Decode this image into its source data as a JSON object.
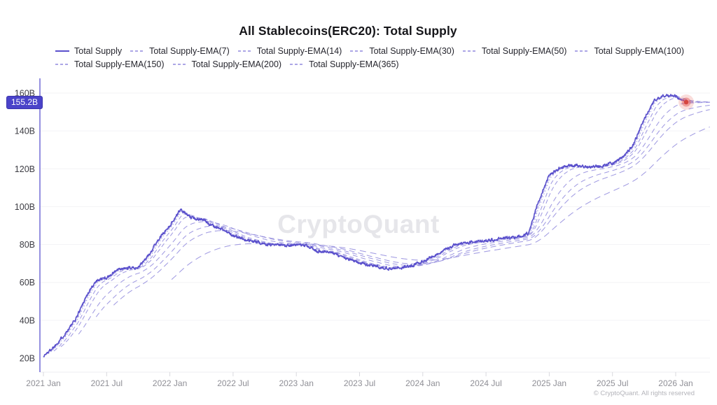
{
  "title": "All Stablecoins(ERC20): Total Supply",
  "watermark": "CryptoQuant",
  "copyright": "© CryptoQuant. All rights reserved",
  "last_value_badge": "155.2B",
  "colors": {
    "main_line": "#5a50cc",
    "ema_line": "#9089dd",
    "axis_line": "#7b74d8",
    "grid_line": "#f3f3f6",
    "baseline": "#ececf0",
    "tick_mark": "#d9d9de",
    "y_label": "#3c3c43",
    "x_label": "#8f8f96",
    "badge_bg": "#4a43c9",
    "marker_red": "#d6453f",
    "watermark": "#e6e6ea"
  },
  "legend": {
    "items": [
      {
        "label": "Total Supply",
        "dash": "solid",
        "row": 0
      },
      {
        "label": "Total Supply-EMA(7)",
        "dash": "5 3",
        "row": 0
      },
      {
        "label": "Total Supply-EMA(14)",
        "dash": "1.5 2.8",
        "row": 0
      },
      {
        "label": "Total Supply-EMA(30)",
        "dash": "6 4",
        "row": 0
      },
      {
        "label": "Total Supply-EMA(50)",
        "dash": "6 4",
        "row": 0
      },
      {
        "label": "Total Supply-EMA(100)",
        "dash": "7 5",
        "row": 0
      },
      {
        "label": "Total Supply-EMA(150)",
        "dash": "7 5",
        "row": 1
      },
      {
        "label": "Total Supply-EMA(200)",
        "dash": "8 5",
        "row": 1
      },
      {
        "label": "Total Supply-EMA(365)",
        "dash": "9 6",
        "row": 1
      }
    ]
  },
  "chart_data": {
    "type": "line",
    "title": "All Stablecoins(ERC20): Total Supply",
    "legend_position": "top",
    "grid": "horizontal",
    "y_unit": "B (billions USD)",
    "ylim": [
      13,
      167
    ],
    "x": [
      "2021-01",
      "2021-02",
      "2021-03",
      "2021-04",
      "2021-05",
      "2021-06",
      "2021-07",
      "2021-08",
      "2021-09",
      "2021-10",
      "2021-11",
      "2021-12",
      "2022-01",
      "2022-02",
      "2022-03",
      "2022-04",
      "2022-05",
      "2022-06",
      "2022-07",
      "2022-08",
      "2022-09",
      "2022-10",
      "2022-11",
      "2022-12",
      "2023-01",
      "2023-02",
      "2023-03",
      "2023-04",
      "2023-05",
      "2023-06",
      "2023-07",
      "2023-08",
      "2023-09",
      "2023-10",
      "2023-11",
      "2023-12",
      "2024-01",
      "2024-02",
      "2024-03",
      "2024-04",
      "2024-05",
      "2024-06",
      "2024-07",
      "2024-08",
      "2024-09",
      "2024-10",
      "2024-11",
      "2024-12",
      "2025-01",
      "2025-02",
      "2025-03",
      "2025-04",
      "2025-05",
      "2025-06",
      "2025-07",
      "2025-08",
      "2025-09",
      "2025-10",
      "2025-11",
      "2025-12",
      "2026-01",
      "2026-01-mid"
    ],
    "series": [
      {
        "name": "Total Supply",
        "values": [
          21,
          26,
          32.5,
          40,
          52,
          61,
          62.5,
          66.5,
          67.5,
          68,
          74.5,
          83.5,
          90,
          98.5,
          94,
          93.5,
          90,
          88,
          84.5,
          83,
          81.5,
          80.5,
          79.5,
          79.5,
          80,
          79,
          76.5,
          76,
          74.5,
          72,
          70.5,
          69,
          68,
          67.5,
          67.8,
          69,
          71,
          74,
          76.5,
          80,
          80.5,
          81.5,
          82,
          83,
          83.5,
          84,
          86,
          103,
          117,
          120.5,
          122,
          121.5,
          121,
          121.5,
          123,
          126,
          133,
          146,
          156.5,
          159,
          158.5,
          155.2
        ]
      }
    ],
    "ema_overlays_computed_from_main_series_periods_days": [
      7,
      14,
      30,
      50,
      100,
      150,
      200,
      365
    ],
    "y_ticks": [
      {
        "value": 20,
        "label": "20B"
      },
      {
        "value": 40,
        "label": "40B"
      },
      {
        "value": 60,
        "label": "60B"
      },
      {
        "value": 80,
        "label": "80B"
      },
      {
        "value": 100,
        "label": "100B"
      },
      {
        "value": 120,
        "label": "120B"
      },
      {
        "value": 140,
        "label": "140B"
      },
      {
        "value": 160,
        "label": "160B"
      }
    ],
    "x_ticks": [
      {
        "month_index": 0,
        "label": "2021 Jan"
      },
      {
        "month_index": 6,
        "label": "2021 Jul"
      },
      {
        "month_index": 12,
        "label": "2022 Jan"
      },
      {
        "month_index": 18,
        "label": "2022 Jul"
      },
      {
        "month_index": 24,
        "label": "2023 Jan"
      },
      {
        "month_index": 30,
        "label": "2023 Jul"
      },
      {
        "month_index": 36,
        "label": "2024 Jan"
      },
      {
        "month_index": 42,
        "label": "2024 Jul"
      },
      {
        "month_index": 48,
        "label": "2025 Jan"
      },
      {
        "month_index": 54,
        "label": "2025 Jul"
      },
      {
        "month_index": 60,
        "label": "2026 Jan"
      }
    ],
    "last_point": {
      "value": 155.2,
      "label": "155.2B",
      "marker": "red-dot"
    }
  }
}
